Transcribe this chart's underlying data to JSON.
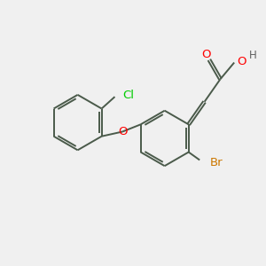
{
  "background_color": "#f0f0f0",
  "bond_color": "#4a5a4a",
  "atom_colors": {
    "O": "#ff0000",
    "Cl": "#00cc00",
    "Br": "#cc7700",
    "H": "#606060",
    "C": "#4a5a4a"
  },
  "figsize": [
    3.0,
    3.0
  ],
  "dpi": 100
}
